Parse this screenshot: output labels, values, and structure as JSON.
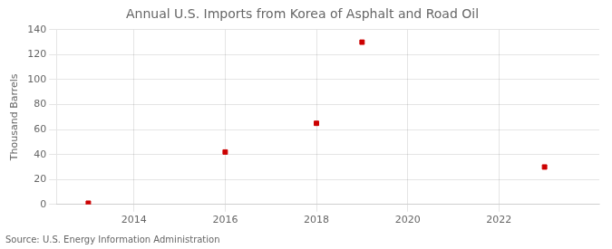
{
  "chart_data": {
    "type": "scatter",
    "title": "Annual U.S. Imports from Korea of Asphalt and Road Oil",
    "ylabel": "Thousand Barrels",
    "source": "Source: U.S. Energy Information Administration",
    "x": [
      2013,
      2016,
      2018,
      2019,
      2023
    ],
    "values": [
      1,
      42,
      65,
      130,
      30
    ],
    "color": "#cc0000",
    "marker": "square",
    "xlim": [
      2012.3,
      2024.2
    ],
    "ylim": [
      0,
      140
    ],
    "xticks": [
      2014,
      2016,
      2018,
      2020,
      2022
    ],
    "yticks": [
      0,
      20,
      40,
      60,
      80,
      100,
      120,
      140
    ],
    "grid": true
  }
}
